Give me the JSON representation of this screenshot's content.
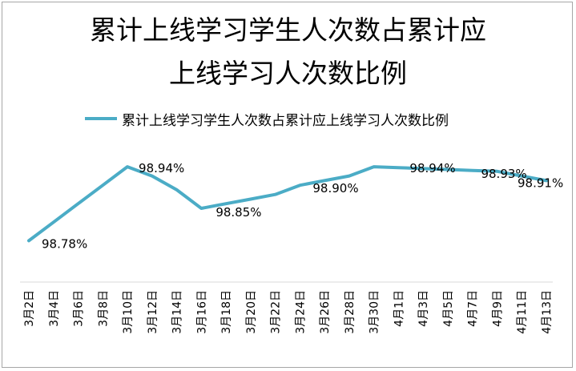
{
  "chart_data": {
    "type": "line",
    "title_line1": "累计上线学习学生人次数占累计应",
    "title_line2": "上线学习人次数比例",
    "categories": [
      "3月2日",
      "3月4日",
      "3月6日",
      "3月8日",
      "3月10日",
      "3月12日",
      "3月14日",
      "3月16日",
      "3月18日",
      "3月20日",
      "3月22日",
      "3月24日",
      "3月26日",
      "3月28日",
      "3月30日",
      "4月1日",
      "4月3日",
      "4月5日",
      "4月7日",
      "4月9日",
      "4月11日",
      "4月13日"
    ],
    "series": [
      {
        "name": "累计上线学习学生人次数占累计应上线学习人次数比例",
        "color": "#4bacc6",
        "values": [
          98.78,
          98.82,
          98.86,
          98.9,
          98.94,
          98.92,
          98.89,
          98.85,
          98.86,
          98.87,
          98.88,
          98.9,
          98.91,
          98.92,
          98.94,
          98.938,
          98.936,
          98.934,
          98.932,
          98.93,
          98.92,
          98.91
        ],
        "data_labels": [
          {
            "index": 0,
            "text": "98.78%"
          },
          {
            "index": 4,
            "text": "98.94%"
          },
          {
            "index": 7,
            "text": "98.85%"
          },
          {
            "index": 11,
            "text": "98.90%"
          },
          {
            "index": 15,
            "text": "98.94%"
          },
          {
            "index": 19,
            "text": "98.93%"
          },
          {
            "index": 21,
            "text": "98.91%"
          }
        ]
      }
    ],
    "ylim": [
      98.72,
      98.98
    ],
    "grid": false,
    "legend_position": "top"
  }
}
